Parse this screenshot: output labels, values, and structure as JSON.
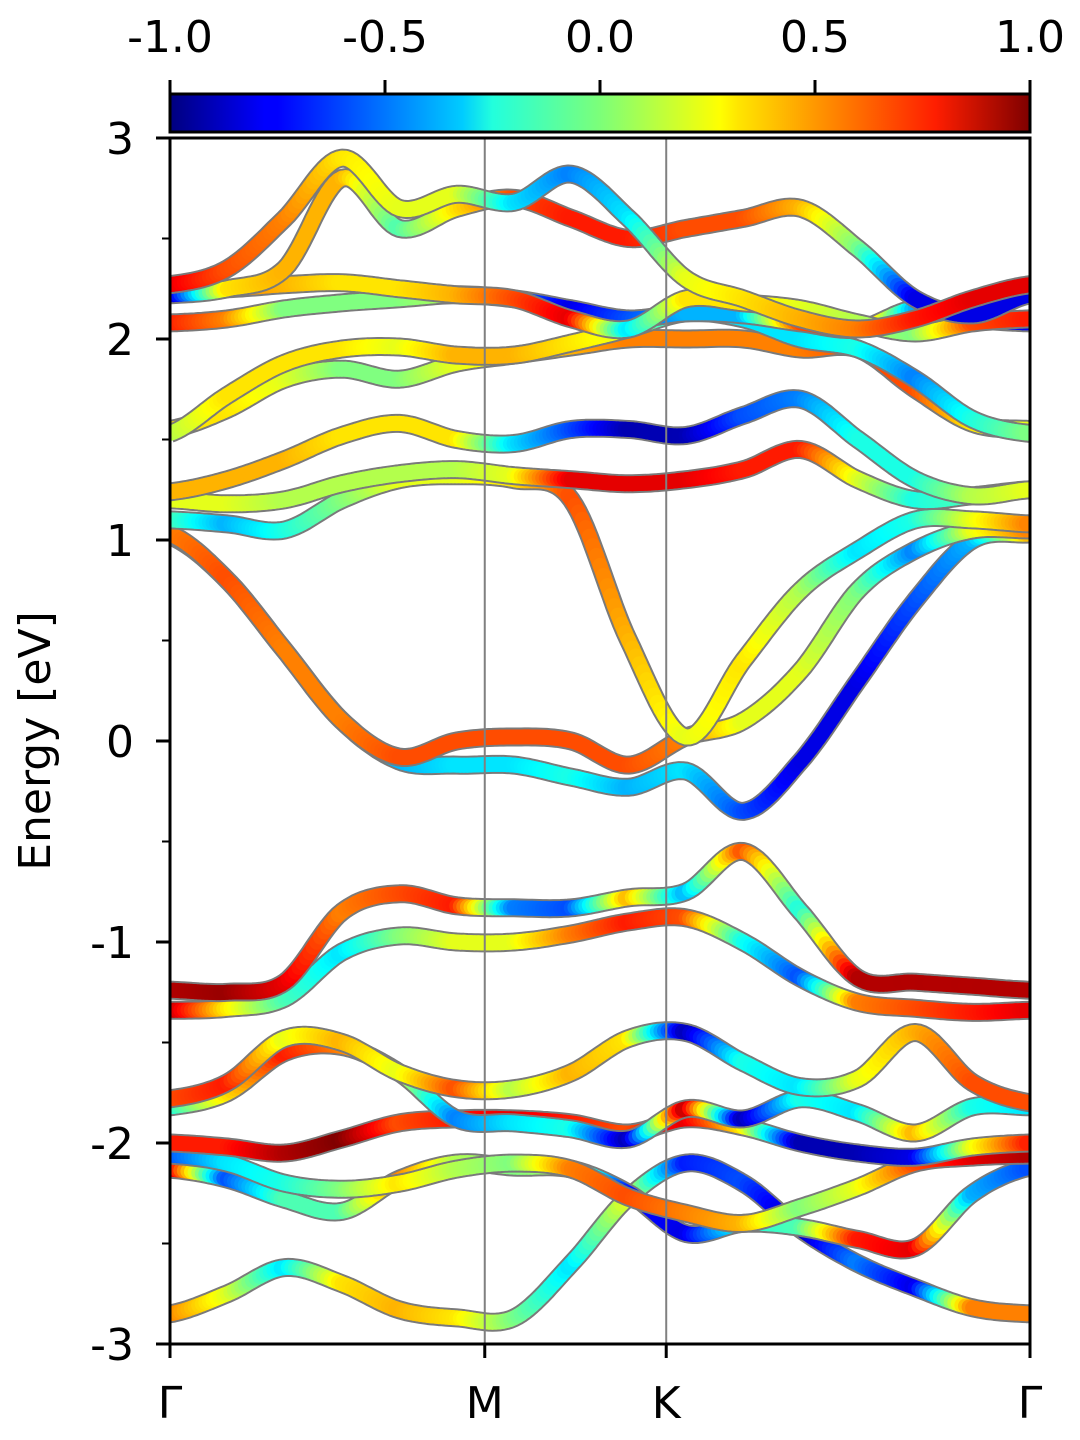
{
  "chart_data": {
    "type": "line",
    "title": "",
    "xlabel": "",
    "ylabel": "Energy [eV]",
    "ylim": [
      -3,
      3
    ],
    "yticks": [
      "3",
      "2",
      "1",
      "0",
      "-1",
      "-2",
      "-3"
    ],
    "ytick_values": [
      3,
      2,
      1,
      0,
      -1,
      -2,
      -3
    ],
    "kpath": {
      "labels": [
        "Γ",
        "M",
        "K",
        "Γ"
      ],
      "positions": [
        0,
        0.366,
        0.577,
        1.0
      ]
    },
    "colorbar": {
      "colormap": "jet",
      "range": [
        -1.0,
        1.0
      ],
      "ticks": [
        "-1.0",
        "-0.5",
        "0.0",
        "0.5",
        "1.0"
      ],
      "tick_values": [
        -1.0,
        -0.5,
        0.0,
        0.5,
        1.0
      ]
    },
    "grid": false,
    "legend": "none",
    "series": [
      {
        "y": [
          -2.85,
          -2.75,
          -2.62,
          -2.7,
          -2.83,
          -2.87,
          -2.87,
          -2.6,
          -2.27,
          -2.1,
          -2.2,
          -2.43,
          -2.6,
          -2.72,
          -2.82,
          -2.85
        ],
        "c": [
          0.5,
          0.2,
          -0.3,
          0.3,
          0.4,
          0.3,
          0.0,
          -0.3,
          0.2,
          -0.7,
          -0.6,
          -0.9,
          -0.5,
          -0.8,
          0.5,
          0.5
        ]
      },
      {
        "y": [
          -2.13,
          -2.18,
          -2.28,
          -2.34,
          -2.18,
          -2.1,
          -2.12,
          -2.13,
          -2.25,
          -2.45,
          -2.4,
          -2.42,
          -2.48,
          -2.52,
          -2.25,
          -2.12
        ],
        "c": [
          0.9,
          -0.6,
          -0.1,
          -0.1,
          0.5,
          0.1,
          0.0,
          0.1,
          -0.7,
          -0.8,
          -0.2,
          -0.1,
          0.7,
          0.8,
          -0.4,
          -0.6
        ]
      },
      {
        "y": [
          -2.06,
          -2.1,
          -2.2,
          -2.23,
          -2.2,
          -2.13,
          -2.1,
          -2.13,
          -2.27,
          -2.35,
          -2.4,
          -2.32,
          -2.22,
          -2.1,
          -2.07,
          -2.06
        ],
        "c": [
          -0.6,
          -0.3,
          -0.2,
          0.0,
          0.3,
          0.1,
          0.0,
          0.5,
          0.6,
          0.5,
          0.4,
          0.0,
          0.2,
          0.6,
          0.8,
          0.9
        ]
      },
      {
        "y": [
          -2.0,
          -2.02,
          -2.05,
          -1.98,
          -1.9,
          -1.88,
          -1.88,
          -1.9,
          -1.95,
          -1.88,
          -1.92,
          -2.0,
          -2.05,
          -2.07,
          -2.02,
          -2.0
        ],
        "c": [
          0.7,
          0.7,
          0.9,
          1.0,
          0.6,
          0.7,
          0.8,
          0.7,
          0.6,
          0.8,
          0.3,
          -0.9,
          -0.9,
          -0.8,
          0.2,
          0.7
        ]
      },
      {
        "y": [
          -1.82,
          -1.75,
          -1.55,
          -1.52,
          -1.65,
          -1.88,
          -1.9,
          -1.93,
          -1.98,
          -1.83,
          -1.88,
          -1.78,
          -1.85,
          -1.95,
          -1.82,
          -1.82
        ],
        "c": [
          -0.2,
          0.3,
          0.7,
          0.5,
          0.2,
          -0.5,
          -0.3,
          -0.2,
          -0.9,
          0.9,
          -0.9,
          -0.2,
          -0.3,
          0.4,
          -0.2,
          -0.3
        ]
      },
      {
        "y": [
          -1.78,
          -1.7,
          -1.48,
          -1.5,
          -1.65,
          -1.73,
          -1.73,
          -1.65,
          -1.48,
          -1.45,
          -1.6,
          -1.72,
          -1.68,
          -1.45,
          -1.7,
          -1.8
        ],
        "c": [
          0.6,
          0.7,
          0.2,
          0.4,
          0.2,
          0.6,
          0.1,
          0.4,
          0.3,
          -0.9,
          -0.2,
          -0.3,
          0.2,
          0.4,
          0.6,
          0.6
        ]
      },
      {
        "y": [
          -1.34,
          -1.33,
          -1.28,
          -1.05,
          -0.97,
          -1.0,
          -1.0,
          -0.96,
          -0.9,
          -0.88,
          -1.0,
          -1.18,
          -1.3,
          -1.33,
          -1.35,
          -1.34
        ],
        "c": [
          0.9,
          0.3,
          -0.1,
          -0.3,
          0.0,
          0.2,
          0.2,
          0.5,
          0.7,
          0.6,
          -0.2,
          -0.6,
          0.5,
          0.6,
          0.7,
          0.8
        ]
      },
      {
        "y": [
          -1.24,
          -1.25,
          -1.2,
          -0.85,
          -0.76,
          -0.82,
          -0.83,
          -0.83,
          -0.78,
          -0.75,
          -0.55,
          -0.85,
          -1.18,
          -1.2,
          -1.22,
          -1.24
        ],
        "c": [
          0.9,
          0.95,
          0.8,
          0.5,
          0.6,
          0.7,
          -0.5,
          -0.6,
          0.4,
          -0.4,
          0.6,
          -0.2,
          0.9,
          0.9,
          0.9,
          0.9
        ]
      },
      {
        "y": [
          1.02,
          0.8,
          0.45,
          0.1,
          -0.1,
          -0.12,
          -0.12,
          -0.18,
          -0.23,
          -0.15,
          -0.35,
          -0.1,
          0.3,
          0.7,
          1.0,
          1.03
        ],
        "c": [
          0.5,
          0.6,
          0.4,
          -0.3,
          -0.4,
          -0.3,
          -0.3,
          -0.2,
          -0.4,
          -0.3,
          -0.6,
          -0.8,
          -0.8,
          -0.6,
          -0.4,
          0.4
        ]
      },
      {
        "y": [
          1.03,
          0.8,
          0.45,
          0.1,
          -0.08,
          0.0,
          0.02,
          0.0,
          -0.12,
          0.02,
          0.1,
          0.35,
          0.75,
          0.95,
          1.05,
          1.05
        ],
        "c": [
          0.5,
          0.6,
          0.5,
          0.5,
          0.6,
          0.6,
          0.6,
          0.6,
          0.6,
          0.5,
          0.2,
          0.2,
          0.0,
          -0.5,
          0.2,
          0.5
        ]
      },
      {
        "y": [
          1.1,
          1.08,
          1.05,
          1.2,
          1.3,
          1.32,
          1.3,
          1.2,
          0.5,
          0.02,
          0.4,
          0.75,
          0.95,
          1.1,
          1.1,
          1.08
        ],
        "c": [
          -0.1,
          -0.4,
          -0.2,
          0.0,
          0.2,
          0.2,
          0.3,
          0.6,
          0.4,
          0.2,
          0.3,
          0.1,
          -0.3,
          -0.2,
          0.2,
          0.5
        ]
      },
      {
        "y": [
          1.2,
          1.18,
          1.2,
          1.28,
          1.33,
          1.35,
          1.32,
          1.3,
          1.28,
          1.3,
          1.35,
          1.45,
          1.3,
          1.2,
          1.22,
          1.25
        ],
        "c": [
          0.2,
          0.2,
          0.1,
          0.1,
          0.1,
          0.1,
          0.2,
          0.8,
          0.8,
          0.8,
          0.7,
          0.7,
          0.2,
          -0.2,
          -0.1,
          0.2
        ]
      },
      {
        "y": [
          1.24,
          1.3,
          1.4,
          1.52,
          1.58,
          1.5,
          1.48,
          1.55,
          1.55,
          1.52,
          1.62,
          1.7,
          1.5,
          1.3,
          1.22,
          1.25
        ],
        "c": [
          0.4,
          0.4,
          0.4,
          0.3,
          0.3,
          0.3,
          -0.3,
          -0.6,
          -0.9,
          -0.9,
          -0.6,
          -0.5,
          -0.2,
          -0.2,
          0.1,
          0.2
        ]
      },
      {
        "y": [
          1.55,
          1.65,
          1.8,
          1.85,
          1.8,
          1.88,
          1.92,
          1.96,
          2.0,
          2.0,
          2.0,
          1.95,
          1.95,
          1.75,
          1.58,
          1.55
        ],
        "c": [
          0.3,
          0.3,
          0.2,
          0.0,
          0.0,
          0.2,
          0.3,
          0.4,
          0.5,
          0.5,
          0.5,
          0.5,
          0.6,
          0.6,
          0.3,
          0.2
        ]
      },
      {
        "y": [
          1.53,
          1.72,
          1.88,
          1.95,
          1.96,
          1.92,
          1.92,
          1.98,
          2.05,
          2.13,
          2.1,
          2.0,
          1.95,
          1.8,
          1.6,
          1.53
        ],
        "c": [
          0.1,
          0.3,
          0.3,
          0.3,
          0.2,
          0.4,
          0.4,
          0.3,
          0.2,
          -0.4,
          -0.3,
          -0.3,
          -0.2,
          -0.5,
          -0.2,
          0.0
        ]
      },
      {
        "y": [
          2.08,
          2.1,
          2.15,
          2.18,
          2.2,
          2.22,
          2.2,
          2.15,
          2.1,
          2.13,
          2.12,
          2.08,
          2.05,
          2.15,
          2.1,
          2.08
        ],
        "c": [
          0.7,
          0.5,
          0.0,
          0.0,
          0.0,
          0.1,
          -0.5,
          -0.8,
          -0.6,
          -0.4,
          -0.4,
          0.6,
          0.7,
          -0.4,
          -0.5,
          -0.8
        ]
      },
      {
        "y": [
          2.25,
          2.25,
          2.27,
          2.28,
          2.25,
          2.22,
          2.2,
          2.1,
          2.05,
          2.2,
          2.18,
          2.15,
          2.08,
          2.03,
          2.08,
          2.1
        ],
        "c": [
          0.8,
          0.5,
          0.4,
          0.3,
          0.3,
          0.4,
          0.6,
          0.8,
          -0.3,
          0.3,
          0.3,
          0.2,
          0.1,
          0.0,
          0.6,
          0.7
        ]
      },
      {
        "y": [
          2.22,
          2.25,
          2.35,
          2.8,
          2.55,
          2.65,
          2.7,
          2.6,
          2.5,
          2.55,
          2.6,
          2.65,
          2.45,
          2.2,
          2.12,
          2.22
        ],
        "c": [
          -0.9,
          0.3,
          0.4,
          0.4,
          -0.1,
          0.3,
          0.6,
          0.7,
          0.7,
          0.6,
          0.6,
          0.4,
          0.0,
          -0.8,
          -0.8,
          -0.8
        ]
      },
      {
        "y": [
          2.27,
          2.35,
          2.6,
          2.9,
          2.65,
          2.72,
          2.68,
          2.82,
          2.6,
          2.3,
          2.2,
          2.1,
          2.05,
          2.1,
          2.2,
          2.27
        ],
        "c": [
          0.8,
          0.6,
          0.5,
          0.3,
          0.2,
          0.2,
          -0.3,
          -0.5,
          -0.3,
          0.2,
          0.3,
          0.4,
          0.5,
          0.7,
          0.8,
          0.8
        ]
      }
    ]
  }
}
